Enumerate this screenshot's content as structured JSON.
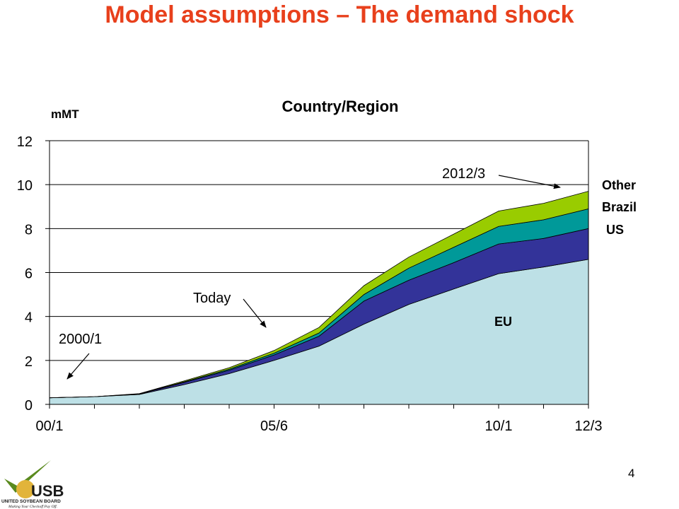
{
  "slide": {
    "title": "Model assumptions – The demand shock",
    "page_number": "4",
    "logo": {
      "text": "USB",
      "subtitle": "UNITED SOYBEAN BOARD",
      "tagline": "Making Your Checkoff Pay Off.",
      "colors": {
        "check": "#5a8a1e",
        "circle": "#e2b43a",
        "text": "#1a1a1a"
      }
    }
  },
  "chart_data": {
    "type": "area",
    "stacked": true,
    "title": "Country/Region",
    "ylabel": "mMT",
    "xlabel": "",
    "ylim": [
      0,
      12
    ],
    "yticks": [
      "0",
      "2",
      "4",
      "6",
      "8",
      "10",
      "12"
    ],
    "x_tick_labels": [
      {
        "index": 0,
        "label": "00/1"
      },
      {
        "index": 5,
        "label": "05/6"
      },
      {
        "index": 10,
        "label": "10/1"
      },
      {
        "index": 12,
        "label": "12/3"
      }
    ],
    "x_count": 13,
    "grid": "horizontal",
    "series": [
      {
        "name": "EU",
        "color": "#bde0e6",
        "values": [
          0.3,
          0.35,
          0.45,
          0.9,
          1.4,
          2.0,
          2.65,
          3.65,
          4.55,
          5.25,
          5.95,
          6.25,
          6.6
        ]
      },
      {
        "name": "US",
        "color": "#333399",
        "values": [
          0.0,
          0.0,
          0.02,
          0.1,
          0.15,
          0.25,
          0.45,
          1.05,
          1.1,
          1.2,
          1.35,
          1.3,
          1.4
        ]
      },
      {
        "name": "Brazil",
        "color": "#009999",
        "values": [
          0.0,
          0.0,
          0.01,
          0.03,
          0.05,
          0.08,
          0.15,
          0.3,
          0.55,
          0.7,
          0.8,
          0.85,
          0.9
        ]
      },
      {
        "name": "Other",
        "color": "#99cc00",
        "values": [
          0.0,
          0.0,
          0.01,
          0.04,
          0.07,
          0.12,
          0.25,
          0.4,
          0.5,
          0.6,
          0.7,
          0.75,
          0.8
        ]
      }
    ],
    "series_labels": [
      "EU",
      "US",
      "Brazil",
      "Other"
    ],
    "annotations": [
      {
        "text": "2000/1",
        "points_to_index": 0
      },
      {
        "text": "Today",
        "points_to_index": 5
      },
      {
        "text": "2012/3",
        "points_to_index": 12
      }
    ]
  }
}
